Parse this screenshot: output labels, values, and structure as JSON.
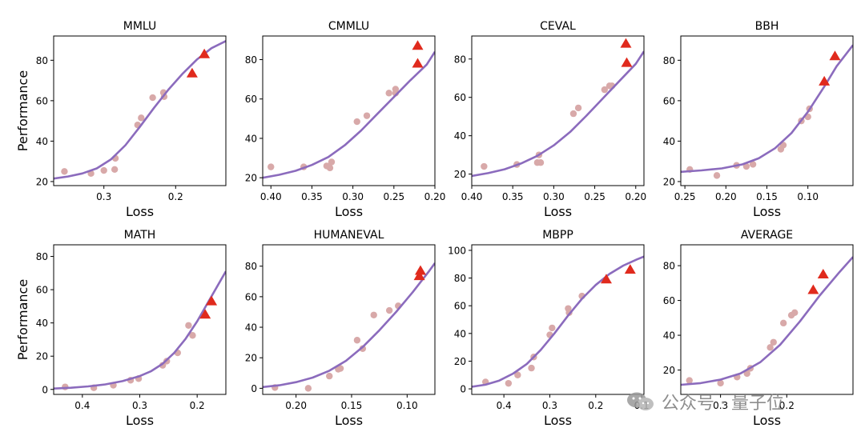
{
  "colors": {
    "curve": "#8b6bbd",
    "points": "#d8a9a9",
    "triangles": "#e02a1d",
    "axis": "#000000"
  },
  "watermark": {
    "text": "公众号 · 量子位",
    "icon": "wechat-icon"
  },
  "chart_data": [
    {
      "type": "scatter",
      "title": "MMLU",
      "xlabel": "Loss",
      "ylabel": "Performance",
      "xlim": [
        0.37,
        0.13
      ],
      "ylim": [
        18,
        92
      ],
      "xticks": [
        0.3,
        0.2
      ],
      "xtick_labels": [
        "0.3",
        "0.2"
      ],
      "yticks": [
        20,
        40,
        60,
        80
      ],
      "ytick_labels": [
        "20",
        "40",
        "60",
        "80"
      ],
      "points": [
        [
          0.355,
          25
        ],
        [
          0.318,
          24
        ],
        [
          0.3,
          25.5
        ],
        [
          0.285,
          26
        ],
        [
          0.284,
          31.5
        ],
        [
          0.253,
          48
        ],
        [
          0.248,
          51.5
        ],
        [
          0.232,
          61.5
        ],
        [
          0.217,
          64
        ],
        [
          0.216,
          62
        ]
      ],
      "triangles": [
        [
          0.177,
          73.5
        ],
        [
          0.16,
          83
        ]
      ],
      "curve": [
        [
          0.37,
          21.5
        ],
        [
          0.35,
          22.5
        ],
        [
          0.33,
          24.0
        ],
        [
          0.31,
          26.5
        ],
        [
          0.29,
          31.0
        ],
        [
          0.27,
          38.0
        ],
        [
          0.25,
          47.0
        ],
        [
          0.23,
          56.5
        ],
        [
          0.21,
          65.5
        ],
        [
          0.19,
          73.5
        ],
        [
          0.17,
          80.5
        ],
        [
          0.15,
          86.0
        ],
        [
          0.13,
          89.5
        ]
      ]
    },
    {
      "type": "scatter",
      "title": "CMMLU",
      "xlabel": "Loss",
      "ylabel": "",
      "xlim": [
        0.41,
        0.2
      ],
      "ylim": [
        16,
        92
      ],
      "xticks": [
        0.4,
        0.35,
        0.3,
        0.25,
        0.2
      ],
      "xtick_labels": [
        "0.40",
        "0.35",
        "0.30",
        "0.25",
        "0.20"
      ],
      "yticks": [
        20,
        40,
        60,
        80
      ],
      "ytick_labels": [
        "20",
        "40",
        "60",
        "80"
      ],
      "points": [
        [
          0.4,
          25.5
        ],
        [
          0.36,
          25.5
        ],
        [
          0.332,
          26
        ],
        [
          0.328,
          25
        ],
        [
          0.326,
          28
        ],
        [
          0.295,
          48.5
        ],
        [
          0.283,
          51.5
        ],
        [
          0.256,
          63
        ],
        [
          0.248,
          65
        ],
        [
          0.248,
          63
        ]
      ],
      "triangles": [
        [
          0.221,
          87
        ],
        [
          0.221,
          78
        ]
      ],
      "curve": [
        [
          0.41,
          20.0
        ],
        [
          0.39,
          21.5
        ],
        [
          0.37,
          23.5
        ],
        [
          0.35,
          26.5
        ],
        [
          0.33,
          30.5
        ],
        [
          0.31,
          36.5
        ],
        [
          0.29,
          44.0
        ],
        [
          0.27,
          52.5
        ],
        [
          0.25,
          61.0
        ],
        [
          0.23,
          69.5
        ],
        [
          0.21,
          77.5
        ],
        [
          0.2,
          84.0
        ]
      ]
    },
    {
      "type": "scatter",
      "title": "CEVAL",
      "xlabel": "Loss",
      "ylabel": "",
      "xlim": [
        0.4,
        0.19
      ],
      "ylim": [
        14,
        92
      ],
      "xticks": [
        0.4,
        0.35,
        0.3,
        0.25,
        0.2
      ],
      "xtick_labels": [
        "0.40",
        "0.35",
        "0.30",
        "0.25",
        "0.20"
      ],
      "yticks": [
        20,
        40,
        60,
        80
      ],
      "ytick_labels": [
        "20",
        "40",
        "60",
        "80"
      ],
      "points": [
        [
          0.385,
          24
        ],
        [
          0.345,
          25
        ],
        [
          0.32,
          26
        ],
        [
          0.318,
          30
        ],
        [
          0.316,
          26
        ],
        [
          0.276,
          51.5
        ],
        [
          0.27,
          54.5
        ],
        [
          0.238,
          64
        ],
        [
          0.232,
          66
        ],
        [
          0.229,
          66
        ]
      ],
      "triangles": [
        [
          0.212,
          88
        ],
        [
          0.211,
          78
        ]
      ],
      "curve": [
        [
          0.4,
          19.0
        ],
        [
          0.38,
          20.5
        ],
        [
          0.36,
          22.5
        ],
        [
          0.34,
          25.5
        ],
        [
          0.32,
          29.5
        ],
        [
          0.3,
          35.0
        ],
        [
          0.28,
          42.0
        ],
        [
          0.26,
          50.5
        ],
        [
          0.24,
          59.5
        ],
        [
          0.22,
          68.5
        ],
        [
          0.2,
          77.5
        ],
        [
          0.19,
          84.0
        ]
      ]
    },
    {
      "type": "scatter",
      "title": "BBH",
      "xlabel": "Loss",
      "ylabel": "",
      "xlim": [
        0.255,
        0.045
      ],
      "ylim": [
        18,
        92
      ],
      "xticks": [
        0.25,
        0.2,
        0.15,
        0.1
      ],
      "xtick_labels": [
        "0.25",
        "0.20",
        "0.15",
        "0.10"
      ],
      "yticks": [
        20,
        40,
        60,
        80
      ],
      "ytick_labels": [
        "20",
        "40",
        "60",
        "80"
      ],
      "points": [
        [
          0.244,
          26
        ],
        [
          0.211,
          23
        ],
        [
          0.187,
          28
        ],
        [
          0.175,
          27.5
        ],
        [
          0.167,
          28.5
        ],
        [
          0.133,
          36
        ],
        [
          0.13,
          38
        ],
        [
          0.108,
          50
        ],
        [
          0.1,
          52
        ],
        [
          0.098,
          56
        ]
      ],
      "triangles": [
        [
          0.08,
          69.5
        ],
        [
          0.067,
          82
        ]
      ],
      "curve": [
        [
          0.255,
          24.8
        ],
        [
          0.23,
          25.5
        ],
        [
          0.205,
          26.5
        ],
        [
          0.18,
          28.5
        ],
        [
          0.16,
          31.5
        ],
        [
          0.14,
          36.5
        ],
        [
          0.12,
          44.0
        ],
        [
          0.1,
          54.5
        ],
        [
          0.08,
          67.0
        ],
        [
          0.065,
          77.0
        ],
        [
          0.045,
          87.5
        ]
      ]
    },
    {
      "type": "scatter",
      "title": "MATH",
      "xlabel": "Loss",
      "ylabel": "Performance",
      "xlim": [
        0.45,
        0.15
      ],
      "ylim": [
        -3,
        87
      ],
      "xticks": [
        0.4,
        0.3,
        0.2
      ],
      "xtick_labels": [
        "0.4",
        "0.3",
        "0.2"
      ],
      "yticks": [
        0,
        20,
        40,
        60,
        80
      ],
      "ytick_labels": [
        "0",
        "20",
        "40",
        "60",
        "80"
      ],
      "points": [
        [
          0.43,
          1.5
        ],
        [
          0.38,
          1
        ],
        [
          0.346,
          2.5
        ],
        [
          0.316,
          5.5
        ],
        [
          0.302,
          6.5
        ],
        [
          0.26,
          14.5
        ],
        [
          0.253,
          17
        ],
        [
          0.234,
          22
        ],
        [
          0.215,
          38.5
        ],
        [
          0.208,
          32.5
        ]
      ],
      "triangles": [
        [
          0.186,
          45
        ],
        [
          0.175,
          53
        ]
      ],
      "curve": [
        [
          0.45,
          0.5
        ],
        [
          0.42,
          1.0
        ],
        [
          0.39,
          1.8
        ],
        [
          0.36,
          3.0
        ],
        [
          0.33,
          5.0
        ],
        [
          0.3,
          8.0
        ],
        [
          0.28,
          11.0
        ],
        [
          0.26,
          15.5
        ],
        [
          0.24,
          22.0
        ],
        [
          0.22,
          30.5
        ],
        [
          0.2,
          41.0
        ],
        [
          0.18,
          53.0
        ],
        [
          0.16,
          65.0
        ],
        [
          0.15,
          71.0
        ]
      ]
    },
    {
      "type": "scatter",
      "title": "HUMANEVAL",
      "xlabel": "Loss",
      "ylabel": "",
      "xlim": [
        0.23,
        0.075
      ],
      "ylim": [
        -4,
        94
      ],
      "xticks": [
        0.2,
        0.15,
        0.1
      ],
      "xtick_labels": [
        "0.20",
        "0.15",
        "0.10"
      ],
      "yticks": [
        0,
        20,
        40,
        60,
        80
      ],
      "ytick_labels": [
        "0",
        "20",
        "40",
        "60",
        "80"
      ],
      "points": [
        [
          0.219,
          0.5
        ],
        [
          0.189,
          0
        ],
        [
          0.17,
          8
        ],
        [
          0.162,
          12.5
        ],
        [
          0.16,
          13
        ],
        [
          0.145,
          31.5
        ],
        [
          0.14,
          26
        ],
        [
          0.13,
          48
        ],
        [
          0.116,
          51
        ],
        [
          0.108,
          54
        ]
      ],
      "triangles": [
        [
          0.089,
          73.5
        ],
        [
          0.088,
          77
        ]
      ],
      "curve": [
        [
          0.23,
          0.8
        ],
        [
          0.215,
          2.0
        ],
        [
          0.2,
          4.0
        ],
        [
          0.185,
          7.0
        ],
        [
          0.17,
          11.5
        ],
        [
          0.155,
          18.0
        ],
        [
          0.14,
          27.0
        ],
        [
          0.125,
          38.0
        ],
        [
          0.11,
          50.0
        ],
        [
          0.095,
          63.0
        ],
        [
          0.08,
          77.0
        ],
        [
          0.075,
          82.0
        ]
      ]
    },
    {
      "type": "scatter",
      "title": "MBPP",
      "xlabel": "Loss",
      "ylabel": "",
      "xlim": [
        0.47,
        0.095
      ],
      "ylim": [
        -4,
        104
      ],
      "xticks": [
        0.4,
        0.3,
        0.2,
        0.1
      ],
      "xtick_labels": [
        "0.4",
        "0.3",
        "0.2",
        "0.1"
      ],
      "yticks": [
        0,
        20,
        40,
        60,
        80,
        100
      ],
      "ytick_labels": [
        "0",
        "20",
        "40",
        "60",
        "80",
        "100"
      ],
      "points": [
        [
          0.44,
          5
        ],
        [
          0.39,
          4
        ],
        [
          0.37,
          10
        ],
        [
          0.34,
          15
        ],
        [
          0.335,
          23
        ],
        [
          0.3,
          39
        ],
        [
          0.295,
          44
        ],
        [
          0.26,
          58
        ],
        [
          0.258,
          55
        ],
        [
          0.23,
          67
        ]
      ],
      "triangles": [
        [
          0.177,
          79
        ],
        [
          0.125,
          86
        ]
      ],
      "curve": [
        [
          0.47,
          1.5
        ],
        [
          0.44,
          3.0
        ],
        [
          0.41,
          6.0
        ],
        [
          0.38,
          11.0
        ],
        [
          0.35,
          18.0
        ],
        [
          0.32,
          28.0
        ],
        [
          0.29,
          40.0
        ],
        [
          0.26,
          53.0
        ],
        [
          0.23,
          65.0
        ],
        [
          0.2,
          75.0
        ],
        [
          0.17,
          83.0
        ],
        [
          0.14,
          89.0
        ],
        [
          0.11,
          93.5
        ],
        [
          0.095,
          95.5
        ]
      ]
    },
    {
      "type": "scatter",
      "title": "AVERAGE",
      "xlabel": "Loss",
      "ylabel": "",
      "xlim": [
        0.36,
        0.1
      ],
      "ylim": [
        6,
        92
      ],
      "xticks": [
        0.3,
        0.2
      ],
      "xtick_labels": [
        "0.3",
        "0.2"
      ],
      "yticks": [
        20,
        40,
        60,
        80
      ],
      "ytick_labels": [
        "20",
        "40",
        "60",
        "80"
      ],
      "points": [
        [
          0.347,
          14
        ],
        [
          0.3,
          12.5
        ],
        [
          0.275,
          16
        ],
        [
          0.26,
          18
        ],
        [
          0.255,
          21
        ],
        [
          0.225,
          33
        ],
        [
          0.22,
          36
        ],
        [
          0.205,
          47
        ],
        [
          0.193,
          51.5
        ],
        [
          0.188,
          53
        ]
      ],
      "triangles": [
        [
          0.16,
          66
        ],
        [
          0.145,
          75
        ]
      ],
      "curve": [
        [
          0.36,
          11.5
        ],
        [
          0.33,
          12.5
        ],
        [
          0.3,
          14.5
        ],
        [
          0.27,
          18.0
        ],
        [
          0.24,
          24.5
        ],
        [
          0.21,
          34.5
        ],
        [
          0.18,
          48.0
        ],
        [
          0.15,
          63.0
        ],
        [
          0.12,
          76.5
        ],
        [
          0.1,
          85.0
        ]
      ]
    }
  ]
}
